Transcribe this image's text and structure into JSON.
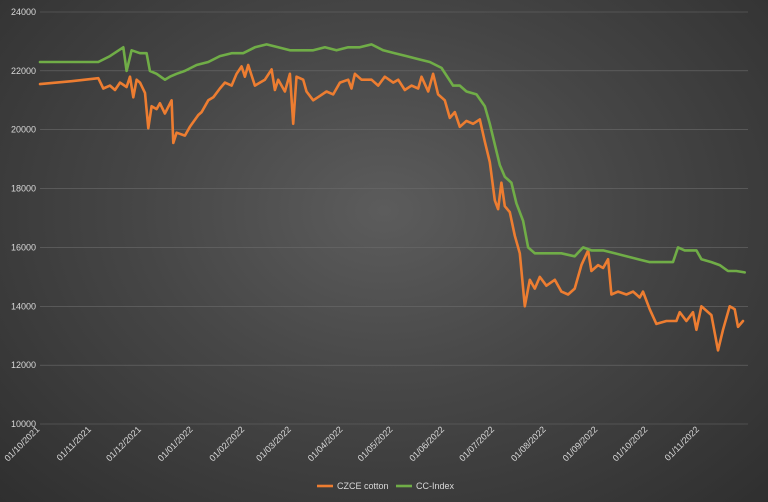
{
  "chart_data": {
    "type": "line",
    "title": "",
    "xlabel": "",
    "ylabel": "",
    "ylim": [
      10000,
      24000
    ],
    "yticks": [
      "10000",
      "12000",
      "14000",
      "16000",
      "18000",
      "20000",
      "22000",
      "24000"
    ],
    "xlim": [
      "2021-10-01",
      "2022-11-30"
    ],
    "xticks": [
      "01/10/2021",
      "01/11/2021",
      "01/12/2021",
      "01/01/2022",
      "01/02/2022",
      "01/03/2022",
      "01/04/2022",
      "01/05/2022",
      "01/06/2022",
      "01/07/2022",
      "01/08/2022",
      "01/09/2022",
      "01/10/2022",
      "01/11/2022"
    ],
    "grid": true,
    "legend": "bottom",
    "series": [
      {
        "name": "CZCE cotton",
        "color": "#ed7d31",
        "points": [
          [
            "2021-10-01",
            21550
          ],
          [
            "2021-10-20",
            21650
          ],
          [
            "2021-11-05",
            21750
          ],
          [
            "2021-11-08",
            21400
          ],
          [
            "2021-11-12",
            21500
          ],
          [
            "2021-11-15",
            21350
          ],
          [
            "2021-11-18",
            21600
          ],
          [
            "2021-11-22",
            21450
          ],
          [
            "2021-11-24",
            21800
          ],
          [
            "2021-11-26",
            21100
          ],
          [
            "2021-11-28",
            21700
          ],
          [
            "2021-11-30",
            21600
          ],
          [
            "2021-12-03",
            21250
          ],
          [
            "2021-12-05",
            20050
          ],
          [
            "2021-12-07",
            20800
          ],
          [
            "2021-12-10",
            20700
          ],
          [
            "2021-12-12",
            20900
          ],
          [
            "2021-12-15",
            20550
          ],
          [
            "2021-12-19",
            21000
          ],
          [
            "2021-12-20",
            19550
          ],
          [
            "2021-12-22",
            19900
          ],
          [
            "2021-12-27",
            19800
          ],
          [
            "2021-12-30",
            20100
          ],
          [
            "2022-01-04",
            20500
          ],
          [
            "2022-01-06",
            20600
          ],
          [
            "2022-01-10",
            21000
          ],
          [
            "2022-01-13",
            21100
          ],
          [
            "2022-01-17",
            21400
          ],
          [
            "2022-01-20",
            21600
          ],
          [
            "2022-01-24",
            21500
          ],
          [
            "2022-01-27",
            21900
          ],
          [
            "2022-01-30",
            22150
          ],
          [
            "2022-02-01",
            21800
          ],
          [
            "2022-02-03",
            22200
          ],
          [
            "2022-02-07",
            21500
          ],
          [
            "2022-02-10",
            21600
          ],
          [
            "2022-02-13",
            21700
          ],
          [
            "2022-02-17",
            22050
          ],
          [
            "2022-02-19",
            21350
          ],
          [
            "2022-02-21",
            21700
          ],
          [
            "2022-02-25",
            21300
          ],
          [
            "2022-02-28",
            21900
          ],
          [
            "2022-03-02",
            20200
          ],
          [
            "2022-03-04",
            21800
          ],
          [
            "2022-03-08",
            21700
          ],
          [
            "2022-03-10",
            21300
          ],
          [
            "2022-03-14",
            21000
          ],
          [
            "2022-03-18",
            21150
          ],
          [
            "2022-03-22",
            21300
          ],
          [
            "2022-03-26",
            21200
          ],
          [
            "2022-03-30",
            21600
          ],
          [
            "2022-04-04",
            21700
          ],
          [
            "2022-04-06",
            21400
          ],
          [
            "2022-04-08",
            21900
          ],
          [
            "2022-04-12",
            21700
          ],
          [
            "2022-04-18",
            21700
          ],
          [
            "2022-04-22",
            21500
          ],
          [
            "2022-04-26",
            21800
          ],
          [
            "2022-05-01",
            21600
          ],
          [
            "2022-05-04",
            21700
          ],
          [
            "2022-05-08",
            21350
          ],
          [
            "2022-05-12",
            21500
          ],
          [
            "2022-05-16",
            21400
          ],
          [
            "2022-05-18",
            21800
          ],
          [
            "2022-05-22",
            21300
          ],
          [
            "2022-05-25",
            21900
          ],
          [
            "2022-05-28",
            21200
          ],
          [
            "2022-06-01",
            21000
          ],
          [
            "2022-06-04",
            20400
          ],
          [
            "2022-06-07",
            20600
          ],
          [
            "2022-06-10",
            20100
          ],
          [
            "2022-06-14",
            20300
          ],
          [
            "2022-06-18",
            20200
          ],
          [
            "2022-06-22",
            20350
          ],
          [
            "2022-06-25",
            19600
          ],
          [
            "2022-06-28",
            18900
          ],
          [
            "2022-07-01",
            17600
          ],
          [
            "2022-07-03",
            17300
          ],
          [
            "2022-07-05",
            18200
          ],
          [
            "2022-07-07",
            17400
          ],
          [
            "2022-07-10",
            17200
          ],
          [
            "2022-07-13",
            16400
          ],
          [
            "2022-07-16",
            15800
          ],
          [
            "2022-07-19",
            14000
          ],
          [
            "2022-07-22",
            14900
          ],
          [
            "2022-07-25",
            14600
          ],
          [
            "2022-07-28",
            15000
          ],
          [
            "2022-08-01",
            14700
          ],
          [
            "2022-08-06",
            14900
          ],
          [
            "2022-08-10",
            14500
          ],
          [
            "2022-08-14",
            14400
          ],
          [
            "2022-08-18",
            14600
          ],
          [
            "2022-08-22",
            15400
          ],
          [
            "2022-08-26",
            15900
          ],
          [
            "2022-08-28",
            15200
          ],
          [
            "2022-09-01",
            15400
          ],
          [
            "2022-09-04",
            15300
          ],
          [
            "2022-09-07",
            15600
          ],
          [
            "2022-09-09",
            14400
          ],
          [
            "2022-09-13",
            14500
          ],
          [
            "2022-09-18",
            14400
          ],
          [
            "2022-09-22",
            14500
          ],
          [
            "2022-09-26",
            14300
          ],
          [
            "2022-09-28",
            14500
          ],
          [
            "2022-10-02",
            13900
          ],
          [
            "2022-10-06",
            13400
          ],
          [
            "2022-10-12",
            13500
          ],
          [
            "2022-10-18",
            13500
          ],
          [
            "2022-10-20",
            13800
          ],
          [
            "2022-10-24",
            13500
          ],
          [
            "2022-10-28",
            13800
          ],
          [
            "2022-10-30",
            13200
          ],
          [
            "2022-11-02",
            14000
          ],
          [
            "2022-11-08",
            13700
          ],
          [
            "2022-11-12",
            12500
          ],
          [
            "2022-11-15",
            13200
          ],
          [
            "2022-11-19",
            14000
          ],
          [
            "2022-11-22",
            13900
          ],
          [
            "2022-11-24",
            13300
          ],
          [
            "2022-11-27",
            13500
          ]
        ]
      },
      {
        "name": "CC-Index",
        "color": "#70ad47",
        "points": [
          [
            "2021-10-01",
            22300
          ],
          [
            "2021-10-31",
            22300
          ],
          [
            "2021-11-05",
            22300
          ],
          [
            "2021-11-12",
            22500
          ],
          [
            "2021-11-20",
            22800
          ],
          [
            "2021-11-22",
            22000
          ],
          [
            "2021-11-25",
            22700
          ],
          [
            "2021-11-30",
            22600
          ],
          [
            "2021-12-04",
            22600
          ],
          [
            "2021-12-06",
            22000
          ],
          [
            "2021-12-10",
            21900
          ],
          [
            "2021-12-15",
            21700
          ],
          [
            "2021-12-18",
            21800
          ],
          [
            "2021-12-22",
            21900
          ],
          [
            "2021-12-27",
            22000
          ],
          [
            "2022-01-03",
            22200
          ],
          [
            "2022-01-10",
            22300
          ],
          [
            "2022-01-17",
            22500
          ],
          [
            "2022-01-24",
            22600
          ],
          [
            "2022-01-31",
            22600
          ],
          [
            "2022-02-07",
            22800
          ],
          [
            "2022-02-14",
            22900
          ],
          [
            "2022-02-21",
            22800
          ],
          [
            "2022-02-28",
            22700
          ],
          [
            "2022-03-07",
            22700
          ],
          [
            "2022-03-14",
            22700
          ],
          [
            "2022-03-21",
            22800
          ],
          [
            "2022-03-28",
            22700
          ],
          [
            "2022-04-04",
            22800
          ],
          [
            "2022-04-11",
            22800
          ],
          [
            "2022-04-18",
            22900
          ],
          [
            "2022-04-25",
            22700
          ],
          [
            "2022-05-02",
            22600
          ],
          [
            "2022-05-09",
            22500
          ],
          [
            "2022-05-16",
            22400
          ],
          [
            "2022-05-23",
            22300
          ],
          [
            "2022-05-30",
            22100
          ],
          [
            "2022-06-06",
            21500
          ],
          [
            "2022-06-10",
            21500
          ],
          [
            "2022-06-14",
            21300
          ],
          [
            "2022-06-20",
            21200
          ],
          [
            "2022-06-25",
            20800
          ],
          [
            "2022-06-28",
            20200
          ],
          [
            "2022-07-01",
            19500
          ],
          [
            "2022-07-04",
            18800
          ],
          [
            "2022-07-07",
            18400
          ],
          [
            "2022-07-11",
            18200
          ],
          [
            "2022-07-14",
            17500
          ],
          [
            "2022-07-18",
            16900
          ],
          [
            "2022-07-21",
            16000
          ],
          [
            "2022-07-25",
            15800
          ],
          [
            "2022-08-01",
            15800
          ],
          [
            "2022-08-10",
            15800
          ],
          [
            "2022-08-18",
            15700
          ],
          [
            "2022-08-23",
            16000
          ],
          [
            "2022-08-28",
            15900
          ],
          [
            "2022-09-04",
            15900
          ],
          [
            "2022-09-11",
            15800
          ],
          [
            "2022-09-18",
            15700
          ],
          [
            "2022-09-25",
            15600
          ],
          [
            "2022-10-02",
            15500
          ],
          [
            "2022-10-09",
            15500
          ],
          [
            "2022-10-16",
            15500
          ],
          [
            "2022-10-19",
            16000
          ],
          [
            "2022-10-23",
            15900
          ],
          [
            "2022-10-30",
            15900
          ],
          [
            "2022-11-02",
            15600
          ],
          [
            "2022-11-08",
            15500
          ],
          [
            "2022-11-13",
            15400
          ],
          [
            "2022-11-18",
            15200
          ],
          [
            "2022-11-23",
            15200
          ],
          [
            "2022-11-28",
            15150
          ]
        ]
      }
    ]
  }
}
